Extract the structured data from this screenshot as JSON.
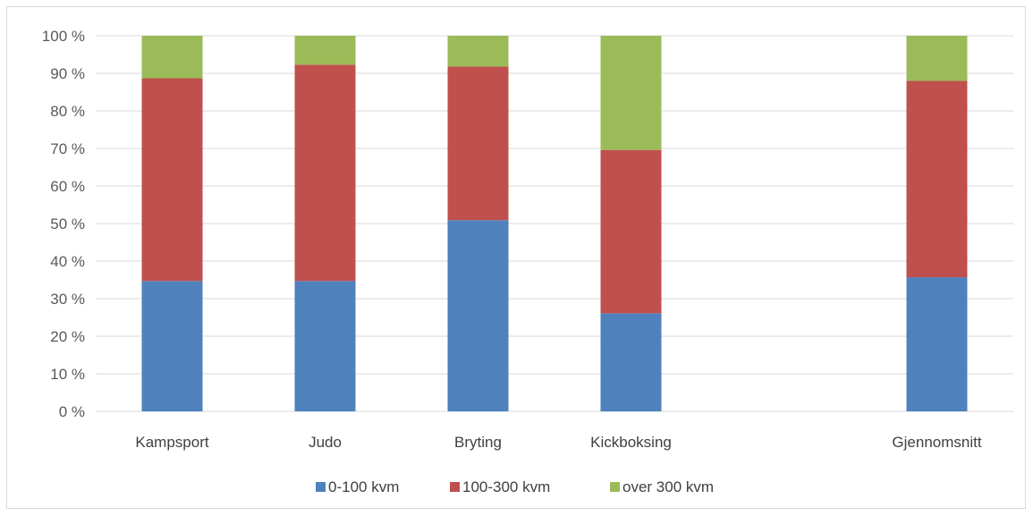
{
  "chart_data": {
    "type": "bar",
    "stacked": true,
    "percent": true,
    "categories": [
      "Kampsport",
      "Judo",
      "Bryting",
      "Kickboksing",
      "",
      "Gjennomsnitt"
    ],
    "series": [
      {
        "name": "0-100 kvm",
        "color": "#4f81bd",
        "values": [
          34.7,
          34.7,
          50.9,
          26.1,
          null,
          35.7
        ]
      },
      {
        "name": "100-300 kvm",
        "color": "#c0504d",
        "values": [
          54.0,
          57.6,
          40.9,
          43.5,
          null,
          52.3
        ]
      },
      {
        "name": "over 300 kvm",
        "color": "#9bbb59",
        "values": [
          11.3,
          7.7,
          8.2,
          30.4,
          null,
          12.0
        ]
      }
    ],
    "yticks": [
      "0 %",
      "10 %",
      "20 %",
      "30 %",
      "40 %",
      "50 %",
      "60 %",
      "70 %",
      "80 %",
      "90 %",
      "100 %"
    ],
    "ylim": [
      0,
      100
    ],
    "grid": true,
    "legend_position": "bottom"
  }
}
